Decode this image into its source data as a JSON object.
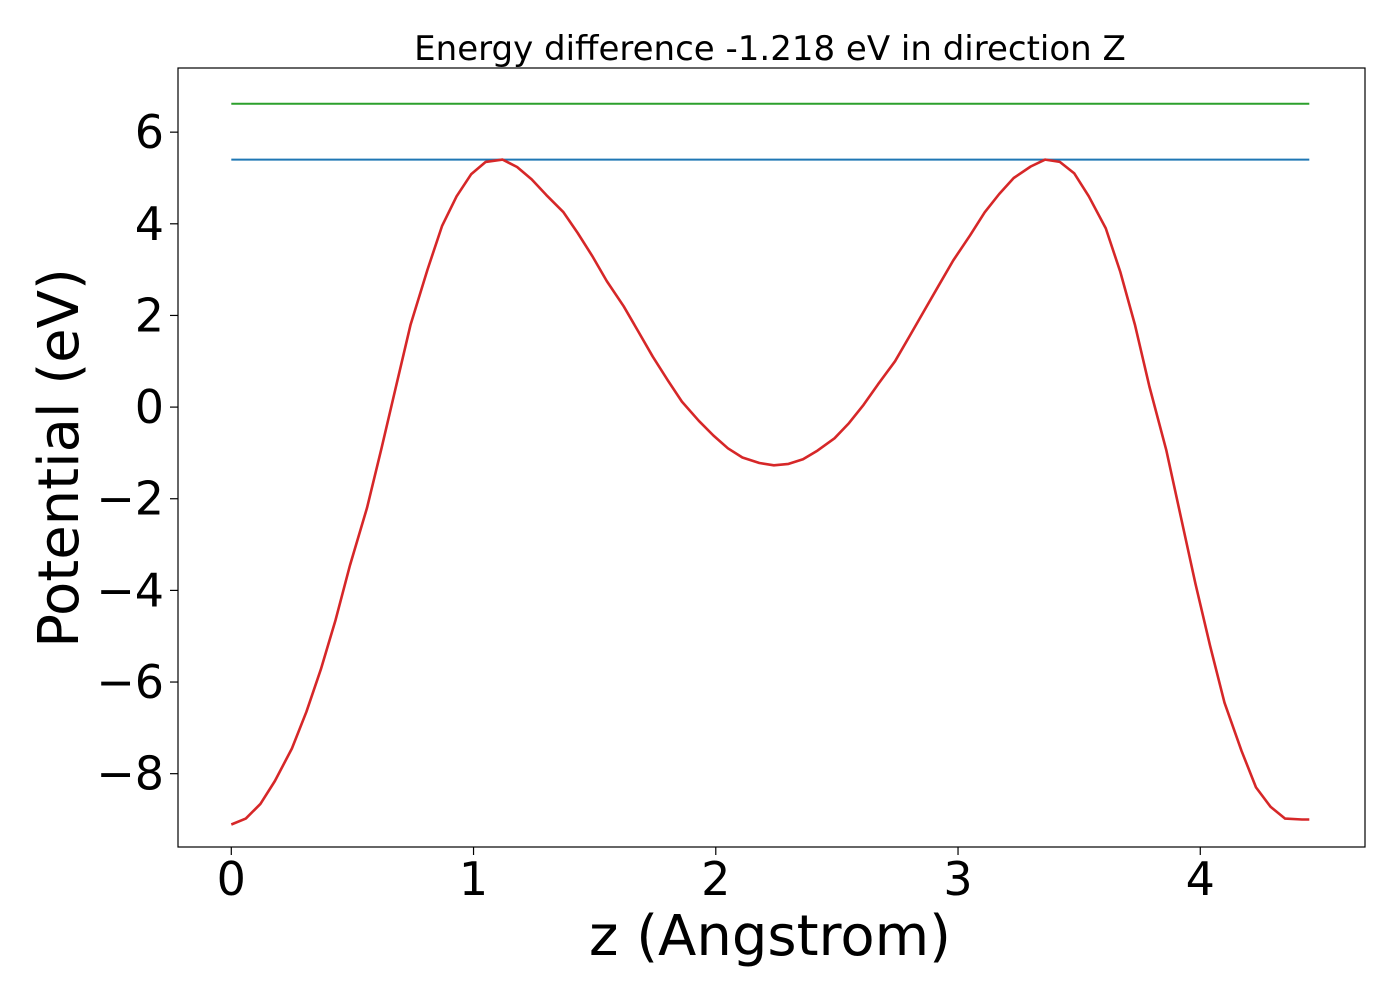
{
  "chart_data": {
    "type": "line",
    "title": "Energy difference -1.218 eV in direction Z",
    "xlabel": "z (Angstrom)",
    "ylabel": "Potential (eV)",
    "xlim": [
      -0.22,
      4.68
    ],
    "ylim": [
      -9.6,
      7.4
    ],
    "xticks": [
      0,
      1,
      2,
      3,
      4
    ],
    "xtick_labels": [
      "0",
      "1",
      "2",
      "3",
      "4"
    ],
    "yticks": [
      6,
      4,
      2,
      0,
      -2,
      -4,
      -6,
      -8
    ],
    "ytick_labels": [
      "6",
      "4",
      "2",
      "0",
      "−2",
      "−4",
      "−6",
      "−8"
    ],
    "grid": false,
    "legend": "none",
    "series": [
      {
        "color": "#2ca02c",
        "x": [
          0,
          4.45
        ],
        "y": [
          6.62,
          6.62
        ]
      },
      {
        "color": "#1f77b4",
        "x": [
          0,
          4.45
        ],
        "y": [
          5.4,
          5.4
        ]
      },
      {
        "color": "#d62728",
        "x": [
          0.0,
          0.06,
          0.12,
          0.18,
          0.25,
          0.31,
          0.37,
          0.43,
          0.49,
          0.56,
          0.62,
          0.68,
          0.74,
          0.81,
          0.87,
          0.93,
          0.99,
          1.05,
          1.12,
          1.18,
          1.24,
          1.3,
          1.37,
          1.43,
          1.49,
          1.55,
          1.62,
          1.68,
          1.74,
          1.8,
          1.86,
          1.93,
          1.99,
          2.05,
          2.11,
          2.18,
          2.24,
          2.3,
          2.36,
          2.42,
          2.49,
          2.55,
          2.61,
          2.67,
          2.74,
          2.8,
          2.86,
          2.92,
          2.98,
          3.05,
          3.11,
          3.17,
          3.23,
          3.3,
          3.36,
          3.42,
          3.48,
          3.54,
          3.61,
          3.67,
          3.73,
          3.79,
          3.86,
          3.92,
          3.98,
          4.04,
          4.1,
          4.17,
          4.23,
          4.29,
          4.35,
          4.42,
          4.45
        ],
        "y": [
          -9.11,
          -8.98,
          -8.66,
          -8.16,
          -7.45,
          -6.65,
          -5.72,
          -4.65,
          -3.45,
          -2.2,
          -0.9,
          0.45,
          1.8,
          3.0,
          3.95,
          4.6,
          5.08,
          5.35,
          5.4,
          5.24,
          4.97,
          4.63,
          4.26,
          3.8,
          3.3,
          2.75,
          2.2,
          1.65,
          1.1,
          0.6,
          0.12,
          -0.3,
          -0.62,
          -0.9,
          -1.1,
          -1.22,
          -1.27,
          -1.24,
          -1.14,
          -0.95,
          -0.68,
          -0.35,
          0.05,
          0.5,
          1.0,
          1.55,
          2.1,
          2.65,
          3.2,
          3.75,
          4.25,
          4.65,
          5.0,
          5.25,
          5.4,
          5.35,
          5.1,
          4.6,
          3.9,
          2.95,
          1.8,
          0.45,
          -0.95,
          -2.4,
          -3.85,
          -5.2,
          -6.45,
          -7.5,
          -8.3,
          -8.72,
          -8.98,
          -9.0,
          -9.0
        ]
      }
    ]
  }
}
